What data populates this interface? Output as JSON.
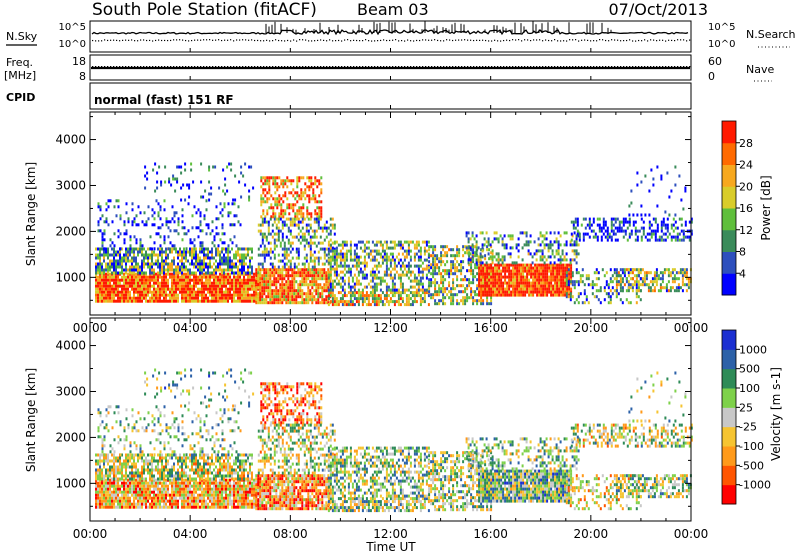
{
  "header": {
    "title": "South Pole Station (fitACF)",
    "beam": "Beam 03",
    "date": "07/Oct/2013"
  },
  "nsky_panel": {
    "label": "N.Sky",
    "right_label": "N.Search",
    "left_ticks": [
      "10^5",
      "10^0"
    ],
    "right_ticks": [
      "10^5",
      "10^0"
    ]
  },
  "freq_panel": {
    "label_line1": "Freq.",
    "label_line2": "[MHz]",
    "right_label": "Nave",
    "left_ticks": [
      "18",
      "8"
    ],
    "right_ticks": [
      "60",
      "0"
    ]
  },
  "cpid_panel": {
    "label": "CPID",
    "text": "normal (fast) 151 RF"
  },
  "colors": {
    "power_scale": [
      "#0000ff",
      "#2d4fbd",
      "#3a8b5a",
      "#5fbf3c",
      "#d9cc2a",
      "#f7a81e",
      "#ff6a00",
      "#ff1a00"
    ],
    "velocity_scale": [
      "#ff0000",
      "#ff5500",
      "#ff9a1a",
      "#f6c431",
      "#c8c8c8",
      "#7ed14a",
      "#2e8b57",
      "#2c61a8",
      "#1b2fd1"
    ]
  },
  "chart_data": [
    {
      "type": "heatmap",
      "name": "power",
      "title": "",
      "xlabel": "",
      "ylabel": "Slant Range [km]",
      "xlim": [
        0,
        24
      ],
      "ylim": [
        180,
        4600
      ],
      "x_tick_values": [
        0,
        4,
        8,
        12,
        16,
        20,
        24
      ],
      "x_tick_labels": [
        "00:00",
        "04:00",
        "08:00",
        "12:00",
        "16:00",
        "20:00",
        "00:00"
      ],
      "y_tick_values": [
        1000,
        2000,
        3000,
        4000
      ],
      "y_tick_labels": [
        "1000",
        "2000",
        "3000",
        "4000"
      ],
      "colorbar": {
        "label": "Power [dB]",
        "tick_labels": [
          "4",
          "8",
          "12",
          "16",
          "20",
          "24",
          "28"
        ]
      }
    },
    {
      "type": "heatmap",
      "name": "velocity",
      "title": "",
      "xlabel": "Time UT",
      "ylabel": "Slant Range [km]",
      "xlim": [
        0,
        24
      ],
      "ylim": [
        180,
        4600
      ],
      "x_tick_values": [
        0,
        4,
        8,
        12,
        16,
        20,
        24
      ],
      "x_tick_labels": [
        "00:00",
        "04:00",
        "08:00",
        "12:00",
        "16:00",
        "20:00",
        "00:00"
      ],
      "y_tick_values": [
        1000,
        2000,
        3000,
        4000
      ],
      "y_tick_labels": [
        "1000",
        "2000",
        "3000",
        "4000"
      ],
      "colorbar": {
        "label": "Velocity [m s-1]",
        "tick_labels": [
          "1000",
          "500",
          "100",
          "25",
          "-25",
          "-100",
          "-500",
          "-1000"
        ]
      }
    }
  ]
}
